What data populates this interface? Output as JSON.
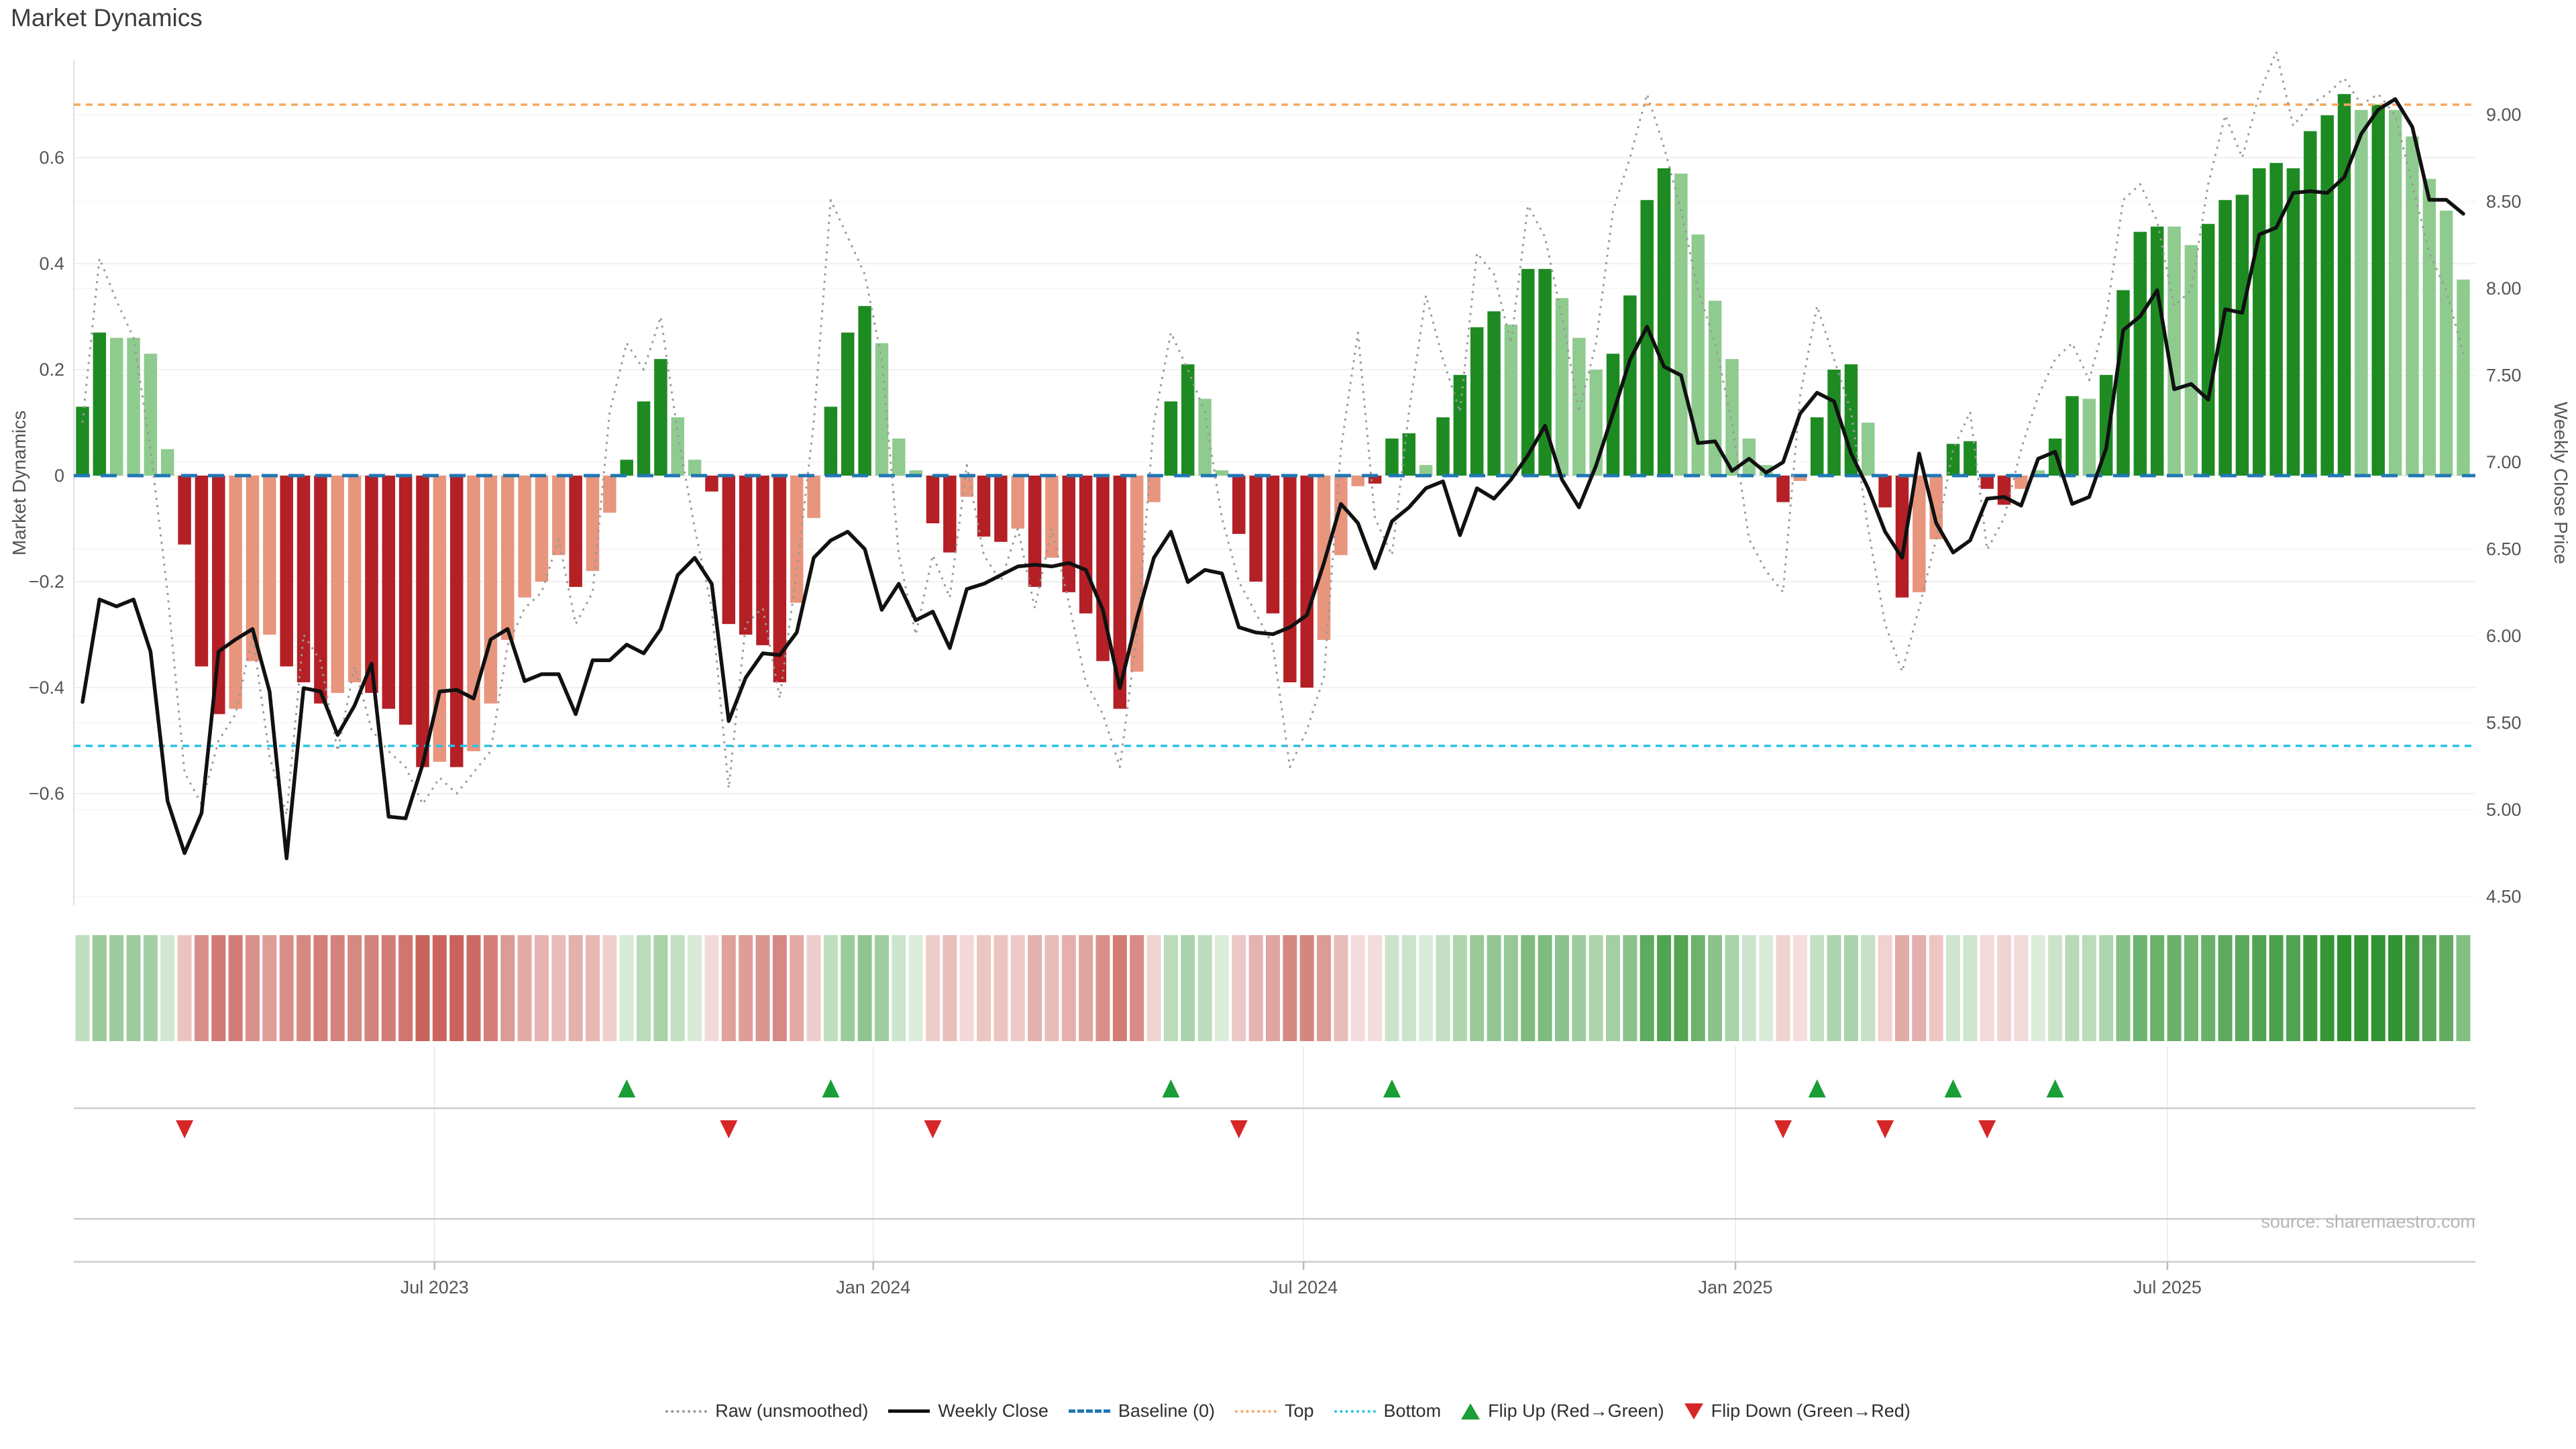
{
  "title": "Market Dynamics",
  "source": "source: sharemaestro.com",
  "axes": {
    "left_label": "Market Dynamics",
    "right_label": "Weekly Close Price",
    "left_ticks": [
      0.6,
      0.4,
      0.2,
      0,
      -0.2,
      -0.4,
      -0.6
    ],
    "right_ticks": [
      9.0,
      8.5,
      8.0,
      7.5,
      7.0,
      6.5,
      6.0,
      5.5,
      5.0,
      4.5
    ],
    "x_ticks": [
      {
        "label": "Jul 2023",
        "week": 20.7
      },
      {
        "label": "Jan 2024",
        "week": 46.5
      },
      {
        "label": "Jul 2024",
        "week": 71.8
      },
      {
        "label": "Jan 2025",
        "week": 97.2
      },
      {
        "label": "Jul 2025",
        "week": 122.6
      }
    ]
  },
  "legend": [
    {
      "label": "Raw (unsmoothed)",
      "swatch": "raw"
    },
    {
      "label": "Weekly Close",
      "swatch": "close"
    },
    {
      "label": "Baseline (0)",
      "swatch": "baseline"
    },
    {
      "label": "Top",
      "swatch": "top"
    },
    {
      "label": "Bottom",
      "swatch": "bottom"
    },
    {
      "label": "Flip Up (Red→Green)",
      "swatch": "tri-up"
    },
    {
      "label": "Flip Down (Green→Red)",
      "swatch": "tri-down"
    }
  ],
  "colors": {
    "dark_green": "#1e8b22",
    "light_green": "#8fcb8f",
    "dark_red": "#b42025",
    "light_red": "#e8957d",
    "weekly_close": "#111111",
    "raw": "#999999",
    "baseline": "#1f77b4",
    "top": "#f5a860",
    "bottom": "#25c4e8",
    "flip_up": "#1a9e37",
    "flip_down": "#d62728",
    "heat_green": "34,139,34",
    "heat_red": "185,50,40"
  },
  "chart_data": {
    "type": "bar+line combo, weekly",
    "n_weeks": 141,
    "ylim_left": [
      -0.81,
      0.785
    ],
    "ylim_right": [
      4.44,
      9.32
    ],
    "reference_lines": {
      "baseline": 0,
      "top": 0.7,
      "bottom": -0.51
    },
    "bar_values": [
      0.13,
      0.27,
      0.26,
      0.26,
      0.23,
      0.05,
      -0.13,
      -0.36,
      -0.45,
      -0.44,
      -0.35,
      -0.3,
      -0.36,
      -0.39,
      -0.43,
      -0.41,
      -0.39,
      -0.41,
      -0.44,
      -0.47,
      -0.55,
      -0.54,
      -0.55,
      -0.52,
      -0.43,
      -0.31,
      -0.23,
      -0.2,
      -0.15,
      -0.21,
      -0.18,
      -0.07,
      0.03,
      0.14,
      0.22,
      0.11,
      0.03,
      -0.03,
      -0.28,
      -0.3,
      -0.32,
      -0.39,
      -0.24,
      -0.08,
      0.13,
      0.27,
      0.32,
      0.25,
      0.07,
      0.01,
      -0.09,
      -0.145,
      -0.04,
      -0.115,
      -0.125,
      -0.1,
      -0.21,
      -0.155,
      -0.22,
      -0.26,
      -0.35,
      -0.44,
      -0.37,
      -0.05,
      0.14,
      0.21,
      0.145,
      0.01,
      -0.11,
      -0.2,
      -0.26,
      -0.39,
      -0.4,
      -0.31,
      -0.15,
      -0.02,
      -0.015,
      0.07,
      0.08,
      0.02,
      0.11,
      0.19,
      0.28,
      0.31,
      0.285,
      0.39,
      0.39,
      0.335,
      0.26,
      0.2,
      0.23,
      0.34,
      0.52,
      0.58,
      0.57,
      0.455,
      0.33,
      0.22,
      0.07,
      0.02,
      -0.05,
      -0.01,
      0.11,
      0.2,
      0.21,
      0.1,
      -0.06,
      -0.23,
      -0.22,
      -0.12,
      0.06,
      0.065,
      -0.025,
      -0.055,
      -0.025,
      0.01,
      0.07,
      0.15,
      0.145,
      0.19,
      0.35,
      0.46,
      0.47,
      0.47,
      0.435,
      0.475,
      0.52,
      0.53,
      0.58,
      0.59,
      0.58,
      0.65,
      0.68,
      0.72,
      0.69,
      0.7,
      0.69,
      0.64,
      0.56,
      0.5,
      0.37
    ],
    "bar_colors": [
      "dg",
      "dg",
      "lg",
      "lg",
      "lg",
      "lg",
      "dr",
      "dr",
      "dr",
      "lr",
      "lr",
      "lr",
      "dr",
      "dr",
      "dr",
      "lr",
      "lr",
      "dr",
      "dr",
      "dr",
      "dr",
      "lr",
      "dr",
      "lr",
      "lr",
      "lr",
      "lr",
      "lr",
      "lr",
      "dr",
      "lr",
      "lr",
      "dg",
      "dg",
      "dg",
      "lg",
      "lg",
      "dr",
      "dr",
      "dr",
      "dr",
      "dr",
      "lr",
      "lr",
      "dg",
      "dg",
      "dg",
      "lg",
      "lg",
      "lg",
      "dr",
      "dr",
      "lr",
      "dr",
      "dr",
      "lr",
      "dr",
      "lr",
      "dr",
      "dr",
      "dr",
      "dr",
      "lr",
      "lr",
      "dg",
      "dg",
      "lg",
      "lg",
      "dr",
      "dr",
      "dr",
      "dr",
      "dr",
      "lr",
      "lr",
      "lr",
      "dr",
      "dg",
      "dg",
      "lg",
      "dg",
      "dg",
      "dg",
      "dg",
      "lg",
      "dg",
      "dg",
      "lg",
      "lg",
      "lg",
      "dg",
      "dg",
      "dg",
      "dg",
      "lg",
      "lg",
      "lg",
      "lg",
      "lg",
      "lg",
      "dr",
      "lr",
      "dg",
      "dg",
      "dg",
      "lg",
      "dr",
      "dr",
      "lr",
      "lr",
      "dg",
      "dg",
      "dr",
      "dr",
      "lr",
      "lg",
      "dg",
      "dg",
      "lg",
      "dg",
      "dg",
      "dg",
      "dg",
      "lg",
      "lg",
      "dg",
      "dg",
      "dg",
      "dg",
      "dg",
      "dg",
      "dg",
      "dg",
      "dg",
      "lg",
      "dg",
      "lg",
      "lg",
      "lg",
      "lg",
      "lg"
    ],
    "weekly_close": [
      5.62,
      6.21,
      6.17,
      6.21,
      5.91,
      5.05,
      4.75,
      4.98,
      5.91,
      5.98,
      6.04,
      5.68,
      4.72,
      5.7,
      5.68,
      5.43,
      5.6,
      5.84,
      4.96,
      4.95,
      5.26,
      5.68,
      5.69,
      5.64,
      5.98,
      6.04,
      5.74,
      5.78,
      5.78,
      5.55,
      5.86,
      5.86,
      5.95,
      5.9,
      6.04,
      6.35,
      6.45,
      6.3,
      5.51,
      5.76,
      5.9,
      5.89,
      6.02,
      6.45,
      6.55,
      6.6,
      6.5,
      6.15,
      6.3,
      6.09,
      6.14,
      5.93,
      6.27,
      6.3,
      6.35,
      6.4,
      6.41,
      6.4,
      6.42,
      6.38,
      6.15,
      5.7,
      6.1,
      6.45,
      6.6,
      6.31,
      6.38,
      6.36,
      6.05,
      6.02,
      6.01,
      6.05,
      6.12,
      6.42,
      6.76,
      6.65,
      6.39,
      6.66,
      6.74,
      6.85,
      6.89,
      6.58,
      6.85,
      6.79,
      6.9,
      7.04,
      7.21,
      6.9,
      6.74,
      6.98,
      7.28,
      7.59,
      7.78,
      7.55,
      7.5,
      7.11,
      7.12,
      6.95,
      7.02,
      6.94,
      7.0,
      7.28,
      7.4,
      7.35,
      7.05,
      6.85,
      6.6,
      6.45,
      7.05,
      6.65,
      6.48,
      6.55,
      6.79,
      6.8,
      6.75,
      7.02,
      7.06,
      6.76,
      6.8,
      7.08,
      7.76,
      7.84,
      7.99,
      7.42,
      7.45,
      7.36,
      7.88,
      7.86,
      8.31,
      8.35,
      8.55,
      8.56,
      8.55,
      8.64,
      8.89,
      9.03,
      9.09,
      8.93,
      8.51,
      8.51,
      8.43
    ],
    "raw": [
      0.1,
      0.41,
      0.33,
      0.26,
      0.05,
      -0.22,
      -0.56,
      -0.62,
      -0.5,
      -0.45,
      -0.3,
      -0.53,
      -0.64,
      -0.3,
      -0.35,
      -0.52,
      -0.36,
      -0.48,
      -0.52,
      -0.55,
      -0.62,
      -0.57,
      -0.6,
      -0.56,
      -0.52,
      -0.32,
      -0.25,
      -0.22,
      -0.12,
      -0.28,
      -0.22,
      0.12,
      0.25,
      0.2,
      0.3,
      0.08,
      -0.1,
      -0.25,
      -0.59,
      -0.28,
      -0.25,
      -0.42,
      -0.18,
      0.1,
      0.52,
      0.45,
      0.38,
      0.22,
      -0.15,
      -0.3,
      -0.15,
      -0.23,
      0.02,
      -0.15,
      -0.2,
      -0.1,
      -0.25,
      -0.1,
      -0.24,
      -0.39,
      -0.45,
      -0.55,
      -0.3,
      0.1,
      0.27,
      0.2,
      0.12,
      -0.08,
      -0.2,
      -0.26,
      -0.32,
      -0.55,
      -0.48,
      -0.38,
      0.05,
      0.27,
      -0.08,
      -0.15,
      0.12,
      0.34,
      0.22,
      0.12,
      0.42,
      0.38,
      0.25,
      0.51,
      0.45,
      0.3,
      0.12,
      0.25,
      0.5,
      0.6,
      0.72,
      0.62,
      0.5,
      0.35,
      0.25,
      0.1,
      -0.12,
      -0.18,
      -0.22,
      0.15,
      0.32,
      0.22,
      0.12,
      -0.1,
      -0.28,
      -0.37,
      -0.25,
      -0.12,
      0.05,
      0.12,
      -0.14,
      -0.08,
      0.05,
      0.15,
      0.22,
      0.25,
      0.18,
      0.3,
      0.52,
      0.55,
      0.48,
      0.32,
      0.35,
      0.55,
      0.68,
      0.6,
      0.72,
      0.8,
      0.66,
      0.7,
      0.72,
      0.75,
      0.7,
      0.72,
      0.68,
      0.55,
      0.42,
      0.35,
      0.23
    ],
    "flips_up_weeks": [
      32,
      44,
      64,
      77,
      102,
      110,
      116
    ],
    "flips_down_weeks": [
      6,
      38,
      50,
      68,
      100,
      106,
      112
    ]
  }
}
